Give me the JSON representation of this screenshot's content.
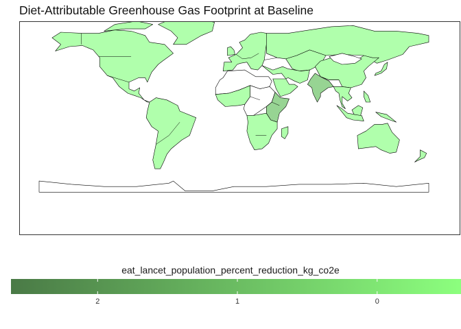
{
  "title": "Diet-Attributable Greenhouse Gas Footprint at Baseline",
  "legend": {
    "title": "eat_lancet_population_percent_reduction_kg_co2e",
    "ticks": [
      {
        "label": "2",
        "value": 2
      },
      {
        "label": "1",
        "value": 1
      },
      {
        "label": "0",
        "value": 0
      }
    ],
    "scale_min": -0.6,
    "scale_max": 2.62,
    "reversed": true,
    "color_low_value_end": "#8CFF7E",
    "color_high_value_end": "#4A7A46",
    "no_data_color": "#FFFFFF"
  },
  "colors": {
    "land_fill": "#B0FFAC",
    "land_darker": "#97D493",
    "border": "#000000",
    "antarctica": "#FFFFFF",
    "panel_border": "#333333"
  },
  "chart_data": {
    "type": "choropleth",
    "title": "Diet-Attributable Greenhouse Gas Footprint at Baseline",
    "fill_variable": "eat_lancet_population_percent_reduction_kg_co2e",
    "projection": "equirectangular world",
    "legend_placement": "bottom",
    "legend_breaks": [
      2,
      1,
      0
    ],
    "regions": [
      {
        "name": "North America",
        "shade": "light"
      },
      {
        "name": "Greenland",
        "shade": "light"
      },
      {
        "name": "South America",
        "shade": "light"
      },
      {
        "name": "Europe",
        "shade": "light"
      },
      {
        "name": "Russia",
        "shade": "light"
      },
      {
        "name": "Central Asia",
        "shade": "light"
      },
      {
        "name": "China",
        "shade": "light"
      },
      {
        "name": "Mongolia",
        "shade": "no data"
      },
      {
        "name": "Middle East",
        "shade": "light"
      },
      {
        "name": "Saudi Arabia",
        "shade": "light"
      },
      {
        "name": "North Africa",
        "shade": "no data"
      },
      {
        "name": "West Africa",
        "shade": "light"
      },
      {
        "name": "Central Africa",
        "shade": "no data"
      },
      {
        "name": "East Africa",
        "shade": "medium"
      },
      {
        "name": "Southern Africa",
        "shade": "light"
      },
      {
        "name": "India",
        "shade": "medium"
      },
      {
        "name": "Southeast Asia",
        "shade": "light"
      },
      {
        "name": "Indonesia",
        "shade": "light"
      },
      {
        "name": "Australia",
        "shade": "light"
      },
      {
        "name": "New Zealand",
        "shade": "light"
      },
      {
        "name": "Japan",
        "shade": "light"
      },
      {
        "name": "Antarctica",
        "shade": "no data"
      }
    ]
  }
}
